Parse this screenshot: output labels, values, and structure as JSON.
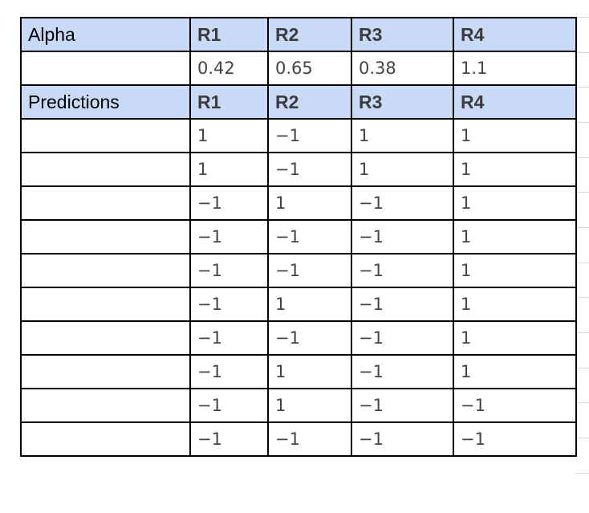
{
  "alpha": {
    "label": "Alpha",
    "headers": [
      "R1",
      "R2",
      "R3",
      "R4"
    ],
    "values": [
      "0.42",
      "0.65",
      "0.38",
      "1.1"
    ]
  },
  "predictions": {
    "label": "Predictions",
    "headers": [
      "R1",
      "R2",
      "R3",
      "R4"
    ],
    "rows": [
      [
        "1",
        "−1",
        "1",
        "1"
      ],
      [
        "1",
        "−1",
        "1",
        "1"
      ],
      [
        "−1",
        "1",
        "−1",
        "1"
      ],
      [
        "−1",
        "−1",
        "−1",
        "1"
      ],
      [
        "−1",
        "−1",
        "−1",
        "1"
      ],
      [
        "−1",
        "1",
        "−1",
        "1"
      ],
      [
        "−1",
        "−1",
        "−1",
        "1"
      ],
      [
        "−1",
        "1",
        "−1",
        "1"
      ],
      [
        "−1",
        "1",
        "−1",
        "−1"
      ],
      [
        "−1",
        "−1",
        "−1",
        "−1"
      ]
    ]
  }
}
